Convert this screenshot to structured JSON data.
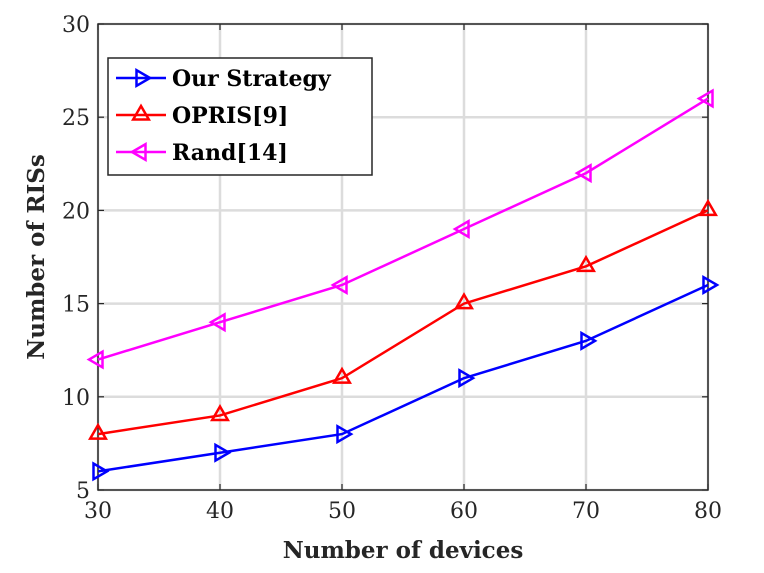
{
  "chart_data": {
    "type": "line",
    "title": "",
    "xlabel": "Number of devices",
    "ylabel": "Number of RISs",
    "x": [
      30,
      40,
      50,
      60,
      70,
      80
    ],
    "xlim": [
      30,
      80
    ],
    "ylim": [
      5,
      30
    ],
    "xticks": [
      30,
      40,
      50,
      60,
      70,
      80
    ],
    "yticks": [
      5,
      10,
      15,
      20,
      25,
      30
    ],
    "grid": true,
    "legend_position": "top-left",
    "series": [
      {
        "name": "Our Strategy",
        "color": "#0000ff",
        "marker": "triangle-right",
        "values": [
          6,
          7,
          8,
          11,
          13,
          16
        ]
      },
      {
        "name": "OPRIS[9]",
        "color": "#ff0000",
        "marker": "triangle-up",
        "values": [
          8,
          9,
          11,
          15,
          17,
          20
        ]
      },
      {
        "name": "Rand[14]",
        "color": "#ff00ff",
        "marker": "triangle-left",
        "values": [
          12,
          14,
          16,
          19,
          22,
          26
        ]
      }
    ]
  }
}
